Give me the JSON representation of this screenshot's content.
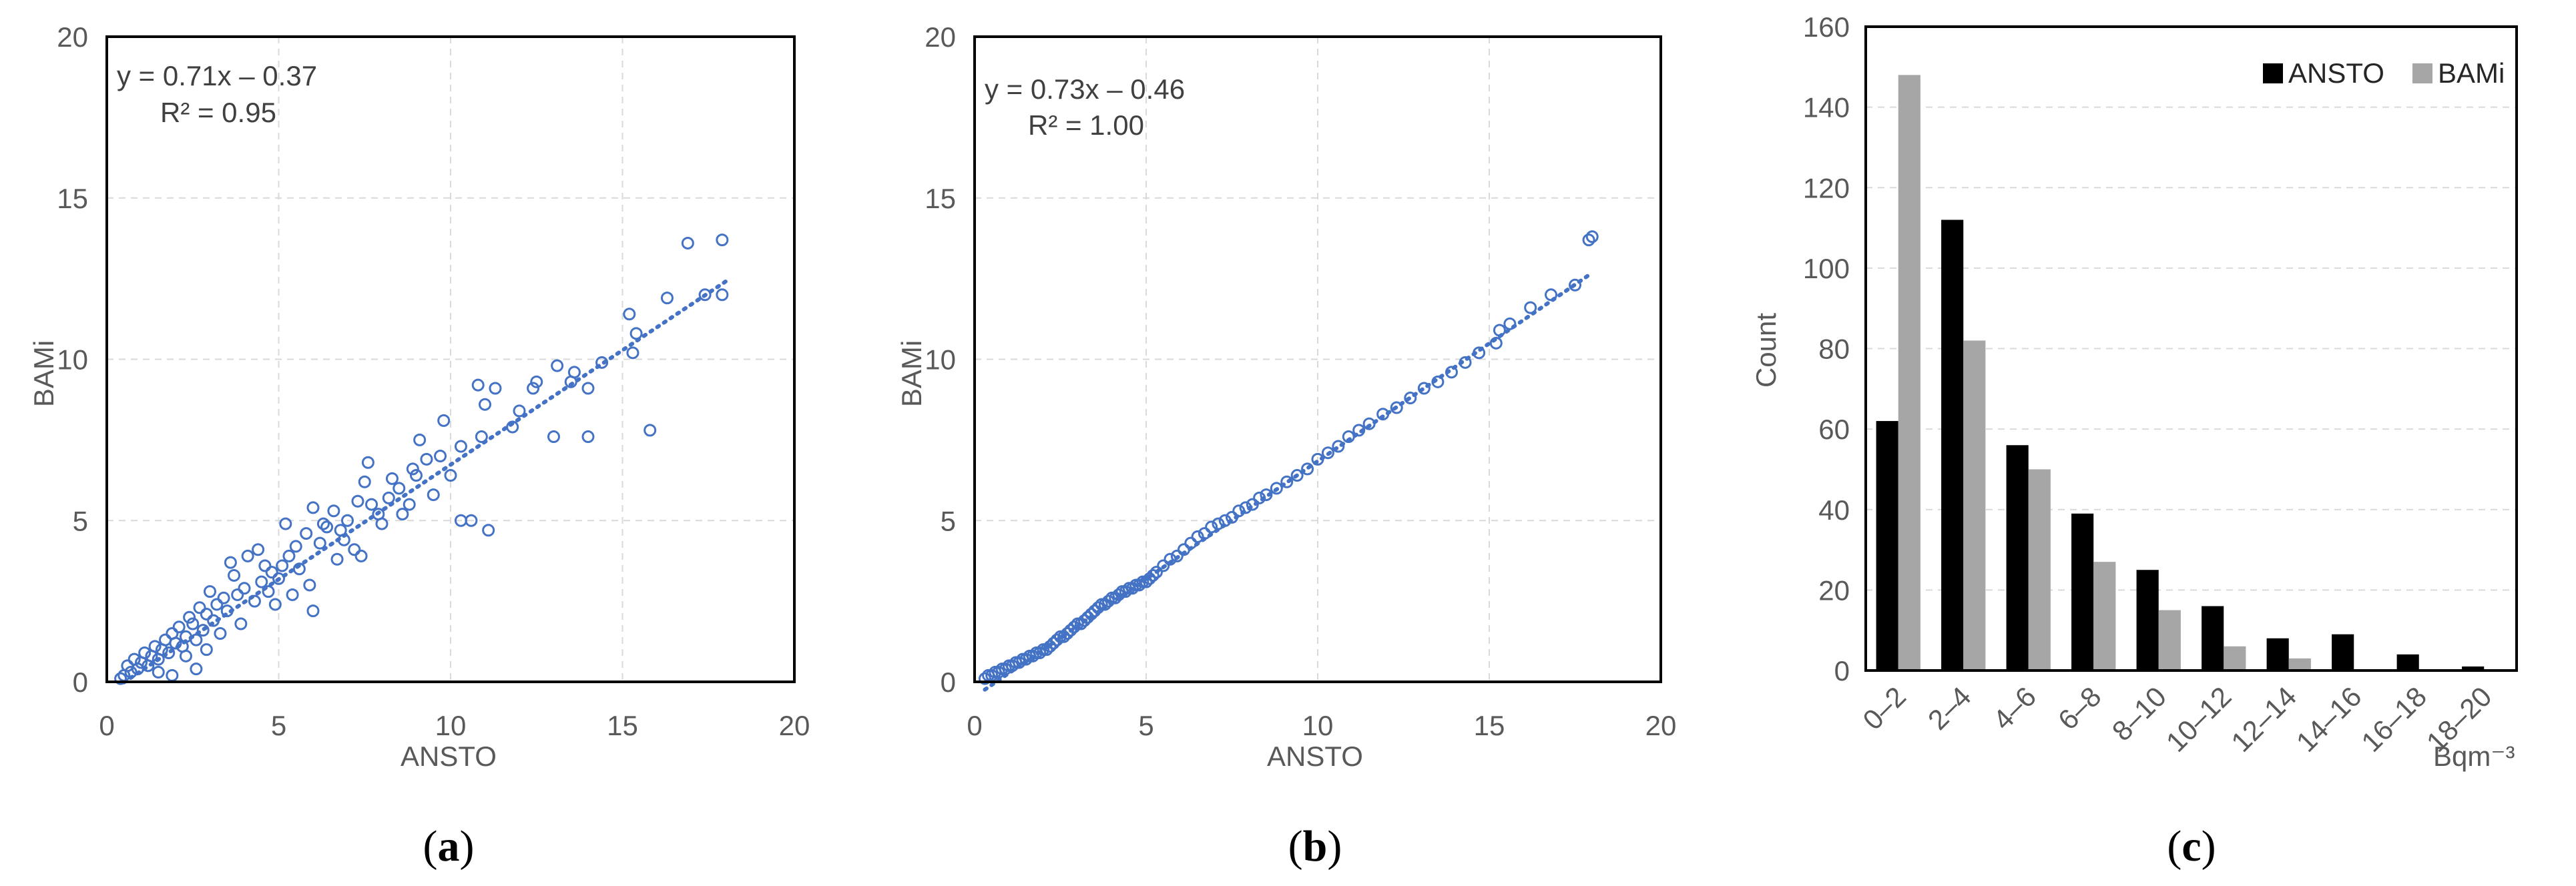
{
  "panels": [
    {
      "label_open": "(",
      "label_letter": "a",
      "label_close": ")"
    },
    {
      "label_open": "(",
      "label_letter": "b",
      "label_close": ")"
    },
    {
      "label_open": "(",
      "label_letter": "c",
      "label_close": ")"
    }
  ],
  "colors": {
    "scatter": "#4472C4",
    "ansto_bar": "#000000",
    "bami_bar": "#A6A6A6",
    "grid": "#D9D9D9"
  },
  "chart_data": [
    {
      "type": "scatter",
      "xlabel": "ANSTO",
      "ylabel": "BAMi",
      "xlim": [
        0,
        20
      ],
      "ylim": [
        0,
        20
      ],
      "xticks": [
        0,
        5,
        10,
        15,
        20
      ],
      "yticks": [
        0,
        5,
        10,
        15,
        20
      ],
      "grid": true,
      "equation": "y = 0.71x – 0.37",
      "r2": "R² = 0.95",
      "trendline": {
        "slope": 0.71,
        "intercept": -0.37,
        "x_range": [
          0.5,
          18
        ]
      },
      "points": [
        [
          17.9,
          13.7
        ],
        [
          16.9,
          13.6
        ],
        [
          17.9,
          12.0
        ],
        [
          17.4,
          12.0
        ],
        [
          16.3,
          11.9
        ],
        [
          15.2,
          11.4
        ],
        [
          15.4,
          10.8
        ],
        [
          15.3,
          10.2
        ],
        [
          14.4,
          9.9
        ],
        [
          14.0,
          9.1
        ],
        [
          13.6,
          9.6
        ],
        [
          13.5,
          9.3
        ],
        [
          13.1,
          9.8
        ],
        [
          12.5,
          9.3
        ],
        [
          12.4,
          9.1
        ],
        [
          13.0,
          7.6
        ],
        [
          14.0,
          7.6
        ],
        [
          15.8,
          7.8
        ],
        [
          11.3,
          9.1
        ],
        [
          10.8,
          9.2
        ],
        [
          11.0,
          8.6
        ],
        [
          10.9,
          7.6
        ],
        [
          10.3,
          7.3
        ],
        [
          11.1,
          4.7
        ],
        [
          10.6,
          5.0
        ],
        [
          10.3,
          5.0
        ],
        [
          9.8,
          8.1
        ],
        [
          9.7,
          7.0
        ],
        [
          9.3,
          6.9
        ],
        [
          9.0,
          6.4
        ],
        [
          8.8,
          5.5
        ],
        [
          8.5,
          6.0
        ],
        [
          8.2,
          5.7
        ],
        [
          7.9,
          5.2
        ],
        [
          7.6,
          6.8
        ],
        [
          7.5,
          6.2
        ],
        [
          7.3,
          5.6
        ],
        [
          7.0,
          5.0
        ],
        [
          6.8,
          4.7
        ],
        [
          6.6,
          5.3
        ],
        [
          6.4,
          4.8
        ],
        [
          6.2,
          4.3
        ],
        [
          6.0,
          5.4
        ],
        [
          5.8,
          4.6
        ],
        [
          5.6,
          3.5
        ],
        [
          5.5,
          4.2
        ],
        [
          5.3,
          3.9
        ],
        [
          5.1,
          3.6
        ],
        [
          5.0,
          3.2
        ],
        [
          4.8,
          3.4
        ],
        [
          4.7,
          2.8
        ],
        [
          4.5,
          3.1
        ],
        [
          4.3,
          2.5
        ],
        [
          4.1,
          3.9
        ],
        [
          4.0,
          2.9
        ],
        [
          3.8,
          2.7
        ],
        [
          3.7,
          3.3
        ],
        [
          3.5,
          2.2
        ],
        [
          3.4,
          2.6
        ],
        [
          3.2,
          2.4
        ],
        [
          3.1,
          1.9
        ],
        [
          3.0,
          2.8
        ],
        [
          2.9,
          2.1
        ],
        [
          2.8,
          1.6
        ],
        [
          2.7,
          2.3
        ],
        [
          2.6,
          1.3
        ],
        [
          2.5,
          1.8
        ],
        [
          2.4,
          2.0
        ],
        [
          2.3,
          1.4
        ],
        [
          2.2,
          1.1
        ],
        [
          2.1,
          1.7
        ],
        [
          2.0,
          1.2
        ],
        [
          1.9,
          1.5
        ],
        [
          1.8,
          0.9
        ],
        [
          1.7,
          1.3
        ],
        [
          1.6,
          1.0
        ],
        [
          1.5,
          0.7
        ],
        [
          1.4,
          1.1
        ],
        [
          1.3,
          0.8
        ],
        [
          1.2,
          0.5
        ],
        [
          1.1,
          0.9
        ],
        [
          1.0,
          0.6
        ],
        [
          0.9,
          0.4
        ],
        [
          0.8,
          0.7
        ],
        [
          0.7,
          0.3
        ],
        [
          0.6,
          0.5
        ],
        [
          0.5,
          0.2
        ],
        [
          0.4,
          0.1
        ],
        [
          1.9,
          0.2
        ],
        [
          2.6,
          0.4
        ],
        [
          6.0,
          2.2
        ],
        [
          5.2,
          4.9
        ],
        [
          4.4,
          4.1
        ],
        [
          3.6,
          3.7
        ],
        [
          8.9,
          6.6
        ],
        [
          9.5,
          5.8
        ],
        [
          12.0,
          8.4
        ],
        [
          7.2,
          4.1
        ],
        [
          6.7,
          3.8
        ],
        [
          8.0,
          4.9
        ],
        [
          8.6,
          5.2
        ],
        [
          5.9,
          3.0
        ],
        [
          4.9,
          2.4
        ],
        [
          3.9,
          1.8
        ],
        [
          2.9,
          1.0
        ],
        [
          1.5,
          0.3
        ],
        [
          10.0,
          6.4
        ],
        [
          11.8,
          7.9
        ],
        [
          7.7,
          5.5
        ],
        [
          6.3,
          4.9
        ],
        [
          3.3,
          1.5
        ],
        [
          2.3,
          0.8
        ],
        [
          4.6,
          3.6
        ],
        [
          5.4,
          2.7
        ],
        [
          6.9,
          4.4
        ],
        [
          7.4,
          3.9
        ],
        [
          8.3,
          6.3
        ],
        [
          9.1,
          7.5
        ]
      ]
    },
    {
      "type": "scatter",
      "xlabel": "ANSTO",
      "ylabel": "BAMi",
      "xlim": [
        0,
        20
      ],
      "ylim": [
        0,
        20
      ],
      "xticks": [
        0,
        5,
        10,
        15,
        20
      ],
      "yticks": [
        0,
        5,
        10,
        15,
        20
      ],
      "grid": true,
      "equation": "y = 0.73x – 0.46",
      "r2": "R² = 1.00",
      "trendline": {
        "slope": 0.73,
        "intercept": -0.46,
        "x_range": [
          0.3,
          18
        ]
      },
      "points": [
        [
          0.3,
          0.1
        ],
        [
          0.4,
          0.2
        ],
        [
          0.5,
          0.2
        ],
        [
          0.6,
          0.3
        ],
        [
          0.7,
          0.3
        ],
        [
          0.8,
          0.4
        ],
        [
          0.9,
          0.4
        ],
        [
          1.0,
          0.5
        ],
        [
          1.1,
          0.5
        ],
        [
          1.2,
          0.6
        ],
        [
          1.3,
          0.6
        ],
        [
          1.4,
          0.7
        ],
        [
          1.5,
          0.7
        ],
        [
          1.6,
          0.8
        ],
        [
          1.7,
          0.8
        ],
        [
          1.8,
          0.9
        ],
        [
          1.9,
          0.9
        ],
        [
          2.0,
          1.0
        ],
        [
          2.1,
          1.0
        ],
        [
          2.2,
          1.1
        ],
        [
          2.3,
          1.2
        ],
        [
          2.4,
          1.3
        ],
        [
          2.5,
          1.4
        ],
        [
          2.6,
          1.4
        ],
        [
          2.7,
          1.5
        ],
        [
          2.8,
          1.6
        ],
        [
          2.9,
          1.7
        ],
        [
          3.0,
          1.8
        ],
        [
          3.1,
          1.8
        ],
        [
          3.2,
          1.9
        ],
        [
          3.3,
          2.0
        ],
        [
          3.4,
          2.1
        ],
        [
          3.5,
          2.2
        ],
        [
          3.6,
          2.3
        ],
        [
          3.7,
          2.4
        ],
        [
          3.8,
          2.4
        ],
        [
          3.9,
          2.5
        ],
        [
          4.0,
          2.6
        ],
        [
          4.1,
          2.6
        ],
        [
          4.2,
          2.7
        ],
        [
          4.3,
          2.8
        ],
        [
          4.4,
          2.8
        ],
        [
          4.5,
          2.9
        ],
        [
          4.6,
          2.9
        ],
        [
          4.7,
          3.0
        ],
        [
          4.8,
          3.0
        ],
        [
          4.9,
          3.1
        ],
        [
          5.0,
          3.1
        ],
        [
          5.1,
          3.2
        ],
        [
          5.2,
          3.3
        ],
        [
          5.3,
          3.4
        ],
        [
          5.5,
          3.6
        ],
        [
          5.7,
          3.8
        ],
        [
          5.9,
          3.9
        ],
        [
          6.1,
          4.1
        ],
        [
          6.3,
          4.3
        ],
        [
          6.5,
          4.5
        ],
        [
          6.7,
          4.6
        ],
        [
          6.9,
          4.8
        ],
        [
          7.1,
          4.9
        ],
        [
          7.3,
          5.0
        ],
        [
          7.5,
          5.1
        ],
        [
          7.7,
          5.3
        ],
        [
          7.9,
          5.4
        ],
        [
          8.1,
          5.5
        ],
        [
          8.3,
          5.7
        ],
        [
          8.5,
          5.8
        ],
        [
          8.8,
          6.0
        ],
        [
          9.1,
          6.2
        ],
        [
          9.4,
          6.4
        ],
        [
          9.7,
          6.6
        ],
        [
          10.0,
          6.9
        ],
        [
          10.3,
          7.1
        ],
        [
          10.6,
          7.3
        ],
        [
          10.9,
          7.6
        ],
        [
          11.2,
          7.8
        ],
        [
          11.5,
          8.0
        ],
        [
          11.9,
          8.3
        ],
        [
          12.3,
          8.5
        ],
        [
          12.7,
          8.8
        ],
        [
          13.1,
          9.1
        ],
        [
          13.5,
          9.3
        ],
        [
          13.9,
          9.6
        ],
        [
          14.3,
          9.9
        ],
        [
          14.7,
          10.2
        ],
        [
          15.2,
          10.5
        ],
        [
          15.3,
          10.9
        ],
        [
          15.6,
          11.1
        ],
        [
          16.2,
          11.6
        ],
        [
          16.8,
          12.0
        ],
        [
          17.5,
          12.3
        ],
        [
          17.9,
          13.7
        ],
        [
          18.0,
          13.8
        ]
      ]
    },
    {
      "type": "bar",
      "categories": [
        "0–2",
        "2–4",
        "4–6",
        "6–8",
        "8–10",
        "10–12",
        "12–14",
        "14–16",
        "16–18",
        "18–20"
      ],
      "series": [
        {
          "name": "ANSTO",
          "values": [
            62,
            112,
            56,
            39,
            25,
            16,
            8,
            9,
            4,
            1
          ]
        },
        {
          "name": "BAMi",
          "values": [
            148,
            82,
            50,
            27,
            15,
            6,
            3,
            0,
            0,
            0
          ]
        }
      ],
      "ylabel": "Count",
      "xlabel": "Bqm⁻³",
      "ylim": [
        0,
        160
      ],
      "yticks": [
        0,
        20,
        40,
        60,
        80,
        100,
        120,
        140,
        160
      ],
      "legend": "top-right",
      "grid": true
    }
  ]
}
